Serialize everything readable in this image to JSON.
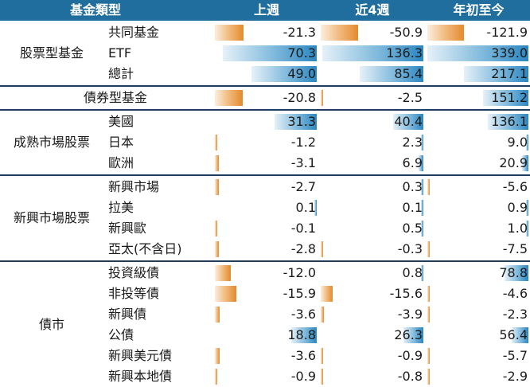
{
  "header": {
    "category": "基金類型",
    "col1": "上週",
    "col2": "近4週",
    "col3": "年初至今"
  },
  "groups": [
    {
      "name": "股票型基金",
      "rows": [
        {
          "label": "共同基金",
          "values": [
            -21.3,
            -50.9,
            -121.9
          ],
          "texts": [
            "-21.3",
            "-50.9",
            "-121.9"
          ]
        },
        {
          "label": "ETF",
          "values": [
            70.3,
            136.3,
            339.0
          ],
          "texts": [
            "70.3",
            "136.3",
            "339.0"
          ]
        },
        {
          "label": "總計",
          "values": [
            49.0,
            85.4,
            217.1
          ],
          "texts": [
            "49.0",
            "85.4",
            "217.1"
          ]
        }
      ]
    },
    {
      "name": "債券型基金",
      "rows": [
        {
          "label": "",
          "values": [
            -20.8,
            -2.5,
            151.2
          ],
          "texts": [
            "-20.8",
            "-2.5",
            "151.2"
          ]
        }
      ]
    },
    {
      "name": "成熟市場股票",
      "rows": [
        {
          "label": "美國",
          "values": [
            31.3,
            40.4,
            136.1
          ],
          "texts": [
            "31.3",
            "40.4",
            "136.1"
          ]
        },
        {
          "label": "日本",
          "values": [
            -1.2,
            2.3,
            9.0
          ],
          "texts": [
            "-1.2",
            "2.3",
            "9.0"
          ]
        },
        {
          "label": "歐洲",
          "values": [
            -3.1,
            6.9,
            20.9
          ],
          "texts": [
            "-3.1",
            "6.9",
            "20.9"
          ]
        }
      ]
    },
    {
      "name": "新興市場股票",
      "rows": [
        {
          "label": "新興市場",
          "values": [
            -2.7,
            0.3,
            -5.6
          ],
          "texts": [
            "-2.7",
            "0.3",
            "-5.6"
          ]
        },
        {
          "label": "拉美",
          "values": [
            0.1,
            0.1,
            0.9
          ],
          "texts": [
            "0.1",
            "0.1",
            "0.9"
          ]
        },
        {
          "label": "新興歐",
          "values": [
            -0.1,
            0.5,
            1.0
          ],
          "texts": [
            "-0.1",
            "0.5",
            "1.0"
          ]
        },
        {
          "label": "亞太(不含日)",
          "values": [
            -2.8,
            -0.3,
            -7.5
          ],
          "texts": [
            "-2.8",
            "-0.3",
            "-7.5"
          ]
        }
      ]
    },
    {
      "name": "債市",
      "rows": [
        {
          "label": "投資級債",
          "values": [
            -12.0,
            0.8,
            78.8
          ],
          "texts": [
            "-12.0",
            "0.8",
            "78.8"
          ]
        },
        {
          "label": "非投等債",
          "values": [
            -15.9,
            -15.6,
            -4.6
          ],
          "texts": [
            "-15.9",
            "-15.6",
            "-4.6"
          ]
        },
        {
          "label": "新興債",
          "values": [
            -3.6,
            -3.9,
            -2.3
          ],
          "texts": [
            "-3.6",
            "-3.9",
            "-2.3"
          ]
        },
        {
          "label": "公債",
          "values": [
            18.8,
            26.3,
            56.4
          ],
          "texts": [
            "18.8",
            "26.3",
            "56.4"
          ]
        },
        {
          "label": "新興美元債",
          "values": [
            -3.6,
            -0.9,
            -5.7
          ],
          "texts": [
            "-3.6",
            "-0.9",
            "-5.7"
          ]
        },
        {
          "label": "新興本地債",
          "values": [
            -0.9,
            -0.8,
            -2.9
          ],
          "texts": [
            "-0.9",
            "-0.8",
            "-2.9"
          ]
        }
      ]
    }
  ],
  "colors": {
    "header_bg": "#1f6e9e",
    "positive_bar": "#2b86c0",
    "negative_bar": "#e48a2c"
  }
}
